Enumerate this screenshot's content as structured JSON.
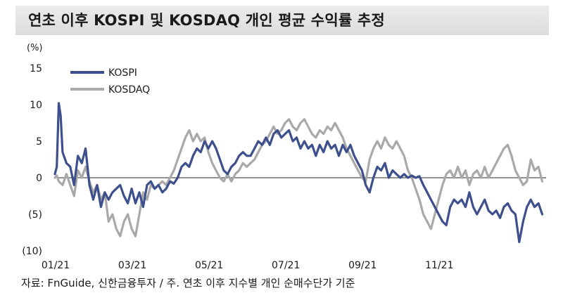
{
  "chart_data": {
    "type": "line",
    "title": "연초 이후 KOSPI 및 KOSDAQ 개인 평균 수익률 추정",
    "unit": "(%)",
    "source": "자료: FnGuide, 신한금융투자 / 주. 연초 이후 지수별 개인 순매수단가 기준",
    "y_ticks": [
      "15",
      "10",
      "5",
      "0",
      "(5)",
      "(10)"
    ],
    "y_tick_values": [
      15,
      10,
      5,
      0,
      -5,
      -10
    ],
    "x_ticks": [
      "01/21",
      "03/21",
      "05/21",
      "07/21",
      "09/21",
      "11/21"
    ],
    "ylim": [
      -10,
      15
    ],
    "x_month_range": [
      0,
      11.8
    ],
    "legend_position": "top-left",
    "series": [
      {
        "name": "KOSPI",
        "color": "#3d4f8c",
        "points": [
          [
            0,
            0.5
          ],
          [
            0.05,
            1.5
          ],
          [
            0.1,
            10.2
          ],
          [
            0.15,
            8.5
          ],
          [
            0.2,
            3.5
          ],
          [
            0.3,
            2
          ],
          [
            0.4,
            1.5
          ],
          [
            0.5,
            -1
          ],
          [
            0.6,
            3
          ],
          [
            0.7,
            2
          ],
          [
            0.8,
            4
          ],
          [
            0.9,
            -1
          ],
          [
            1.0,
            -3
          ],
          [
            1.1,
            -1
          ],
          [
            1.2,
            -4
          ],
          [
            1.3,
            -2
          ],
          [
            1.4,
            -3
          ],
          [
            1.5,
            -2
          ],
          [
            1.6,
            -1.5
          ],
          [
            1.7,
            -1
          ],
          [
            1.8,
            -2.5
          ],
          [
            1.9,
            -3.5
          ],
          [
            2.0,
            -1.5
          ],
          [
            2.1,
            -3.5
          ],
          [
            2.2,
            -2
          ],
          [
            2.3,
            -4
          ],
          [
            2.4,
            -1
          ],
          [
            2.5,
            -0.5
          ],
          [
            2.6,
            -1.5
          ],
          [
            2.7,
            -1
          ],
          [
            2.8,
            -2
          ],
          [
            2.9,
            -1.5
          ],
          [
            3.0,
            -0.5
          ],
          [
            3.1,
            -0.8
          ],
          [
            3.2,
            0
          ],
          [
            3.3,
            1.5
          ],
          [
            3.4,
            2
          ],
          [
            3.5,
            1.5
          ],
          [
            3.6,
            3
          ],
          [
            3.7,
            4
          ],
          [
            3.8,
            3.5
          ],
          [
            3.9,
            5
          ],
          [
            4.0,
            4
          ],
          [
            4.1,
            5
          ],
          [
            4.2,
            4
          ],
          [
            4.3,
            2.5
          ],
          [
            4.4,
            1
          ],
          [
            4.5,
            0.5
          ],
          [
            4.6,
            1.5
          ],
          [
            4.7,
            2
          ],
          [
            4.8,
            3
          ],
          [
            4.9,
            3.5
          ],
          [
            5.0,
            3
          ],
          [
            5.1,
            3
          ],
          [
            5.2,
            4
          ],
          [
            5.3,
            5
          ],
          [
            5.4,
            4.5
          ],
          [
            5.5,
            5.5
          ],
          [
            5.6,
            4.5
          ],
          [
            5.7,
            6
          ],
          [
            5.8,
            6.5
          ],
          [
            5.9,
            5.5
          ],
          [
            6.0,
            6
          ],
          [
            6.1,
            6.5
          ],
          [
            6.2,
            5
          ],
          [
            6.3,
            5.5
          ],
          [
            6.4,
            4
          ],
          [
            6.5,
            5
          ],
          [
            6.6,
            4
          ],
          [
            6.7,
            4.5
          ],
          [
            6.8,
            3
          ],
          [
            6.9,
            4.5
          ],
          [
            7.0,
            3.5
          ],
          [
            7.1,
            5
          ],
          [
            7.2,
            4
          ],
          [
            7.3,
            4.5
          ],
          [
            7.4,
            3
          ],
          [
            7.5,
            4.5
          ],
          [
            7.6,
            3.5
          ],
          [
            7.7,
            4.5
          ],
          [
            7.8,
            3
          ],
          [
            7.9,
            2
          ],
          [
            8.0,
            1
          ],
          [
            8.1,
            -1
          ],
          [
            8.2,
            -2
          ],
          [
            8.3,
            0
          ],
          [
            8.4,
            1.5
          ],
          [
            8.5,
            1
          ],
          [
            8.6,
            2
          ],
          [
            8.7,
            0
          ],
          [
            8.8,
            1
          ],
          [
            8.9,
            0.5
          ],
          [
            9.0,
            0
          ],
          [
            9.1,
            0.5
          ],
          [
            9.2,
            0
          ],
          [
            9.3,
            0.3
          ],
          [
            9.4,
            0
          ],
          [
            9.5,
            0.2
          ],
          [
            9.6,
            -1
          ],
          [
            9.7,
            -2
          ],
          [
            9.8,
            -3
          ],
          [
            9.9,
            -4
          ],
          [
            10.0,
            -5
          ],
          [
            10.1,
            -6
          ],
          [
            10.2,
            -6.5
          ],
          [
            10.3,
            -4
          ],
          [
            10.4,
            -3
          ],
          [
            10.5,
            -3.5
          ],
          [
            10.6,
            -3
          ],
          [
            10.7,
            -4
          ],
          [
            10.8,
            -2
          ],
          [
            10.9,
            -4
          ],
          [
            11.0,
            -5
          ],
          [
            11.1,
            -4
          ],
          [
            11.2,
            -3
          ],
          [
            11.3,
            -4.5
          ],
          [
            11.4,
            -5
          ],
          [
            11.5,
            -4.5
          ],
          [
            11.6,
            -5.5
          ],
          [
            11.7,
            -4
          ],
          [
            11.8,
            -3.5
          ],
          [
            11.9,
            -4.5
          ],
          [
            12.0,
            -5
          ],
          [
            12.1,
            -8.8
          ],
          [
            12.2,
            -6
          ],
          [
            12.3,
            -4
          ],
          [
            12.4,
            -3
          ],
          [
            12.5,
            -4
          ],
          [
            12.6,
            -3.5
          ],
          [
            12.7,
            -5
          ]
        ]
      },
      {
        "name": "KOSDAQ",
        "color": "#a9a9a9",
        "points": [
          [
            0,
            0
          ],
          [
            0.05,
            0.3
          ],
          [
            0.1,
            -0.5
          ],
          [
            0.2,
            -1
          ],
          [
            0.3,
            0.5
          ],
          [
            0.4,
            -1
          ],
          [
            0.5,
            -2.5
          ],
          [
            0.6,
            1
          ],
          [
            0.7,
            0
          ],
          [
            0.8,
            1.5
          ],
          [
            0.9,
            -0.5
          ],
          [
            1.0,
            -2
          ],
          [
            1.1,
            -1
          ],
          [
            1.2,
            -3
          ],
          [
            1.3,
            -2
          ],
          [
            1.4,
            -6
          ],
          [
            1.5,
            -5
          ],
          [
            1.6,
            -7
          ],
          [
            1.7,
            -8
          ],
          [
            1.8,
            -6
          ],
          [
            1.9,
            -5
          ],
          [
            2.0,
            -7
          ],
          [
            2.1,
            -8
          ],
          [
            2.2,
            -5
          ],
          [
            2.3,
            -2
          ],
          [
            2.4,
            -3
          ],
          [
            2.5,
            -1
          ],
          [
            2.6,
            -1.5
          ],
          [
            2.7,
            -1
          ],
          [
            2.8,
            -0.5
          ],
          [
            2.9,
            -1
          ],
          [
            3.0,
            0
          ],
          [
            3.1,
            1
          ],
          [
            3.2,
            2.5
          ],
          [
            3.3,
            4
          ],
          [
            3.4,
            5.5
          ],
          [
            3.5,
            6.5
          ],
          [
            3.6,
            5
          ],
          [
            3.7,
            6
          ],
          [
            3.8,
            5
          ],
          [
            3.9,
            5.5
          ],
          [
            4.0,
            3.5
          ],
          [
            4.1,
            2
          ],
          [
            4.2,
            1
          ],
          [
            4.3,
            0
          ],
          [
            4.4,
            -0.5
          ],
          [
            4.5,
            0.5
          ],
          [
            4.6,
            -0.5
          ],
          [
            4.7,
            0.5
          ],
          [
            4.8,
            1
          ],
          [
            4.9,
            2
          ],
          [
            5.0,
            1.5
          ],
          [
            5.1,
            2
          ],
          [
            5.2,
            2.5
          ],
          [
            5.3,
            3.5
          ],
          [
            5.4,
            4.5
          ],
          [
            5.5,
            5
          ],
          [
            5.6,
            6
          ],
          [
            5.7,
            7
          ],
          [
            5.8,
            6
          ],
          [
            5.9,
            6.5
          ],
          [
            6.0,
            7.5
          ],
          [
            6.1,
            8
          ],
          [
            6.2,
            7
          ],
          [
            6.3,
            6.5
          ],
          [
            6.4,
            7.5
          ],
          [
            6.5,
            8
          ],
          [
            6.6,
            7
          ],
          [
            6.7,
            6
          ],
          [
            6.8,
            5.5
          ],
          [
            6.9,
            6.5
          ],
          [
            7.0,
            6
          ],
          [
            7.1,
            7
          ],
          [
            7.2,
            6.5
          ],
          [
            7.3,
            7.5
          ],
          [
            7.4,
            6.5
          ],
          [
            7.5,
            5.5
          ],
          [
            7.6,
            4
          ],
          [
            7.7,
            3
          ],
          [
            7.8,
            2
          ],
          [
            7.9,
            1
          ],
          [
            8.0,
            0
          ],
          [
            8.1,
            -0.5
          ],
          [
            8.2,
            2.5
          ],
          [
            8.3,
            4
          ],
          [
            8.4,
            5
          ],
          [
            8.5,
            4
          ],
          [
            8.6,
            5.5
          ],
          [
            8.7,
            4.5
          ],
          [
            8.8,
            4
          ],
          [
            8.9,
            5
          ],
          [
            9.0,
            4
          ],
          [
            9.1,
            3
          ],
          [
            9.2,
            1
          ],
          [
            9.3,
            0
          ],
          [
            9.4,
            -1.5
          ],
          [
            9.5,
            -3
          ],
          [
            9.6,
            -5
          ],
          [
            9.7,
            -6
          ],
          [
            9.8,
            -7
          ],
          [
            9.9,
            -5
          ],
          [
            10.0,
            -3
          ],
          [
            10.1,
            -1
          ],
          [
            10.2,
            0.5
          ],
          [
            10.3,
            1
          ],
          [
            10.4,
            0
          ],
          [
            10.5,
            1.5
          ],
          [
            10.6,
            0
          ],
          [
            10.7,
            1
          ],
          [
            10.8,
            -1
          ],
          [
            10.9,
            0.5
          ],
          [
            11.0,
            1
          ],
          [
            11.1,
            0
          ],
          [
            11.2,
            1.5
          ],
          [
            11.3,
            0
          ],
          [
            11.4,
            1
          ],
          [
            11.5,
            2
          ],
          [
            11.6,
            3
          ],
          [
            11.7,
            4
          ],
          [
            11.8,
            4.5
          ],
          [
            11.9,
            3
          ],
          [
            12.0,
            1
          ],
          [
            12.1,
            0
          ],
          [
            12.2,
            -1
          ],
          [
            12.3,
            -0.5
          ],
          [
            12.4,
            2.5
          ],
          [
            12.5,
            1
          ],
          [
            12.6,
            1.5
          ],
          [
            12.7,
            -0.5
          ]
        ]
      }
    ]
  }
}
